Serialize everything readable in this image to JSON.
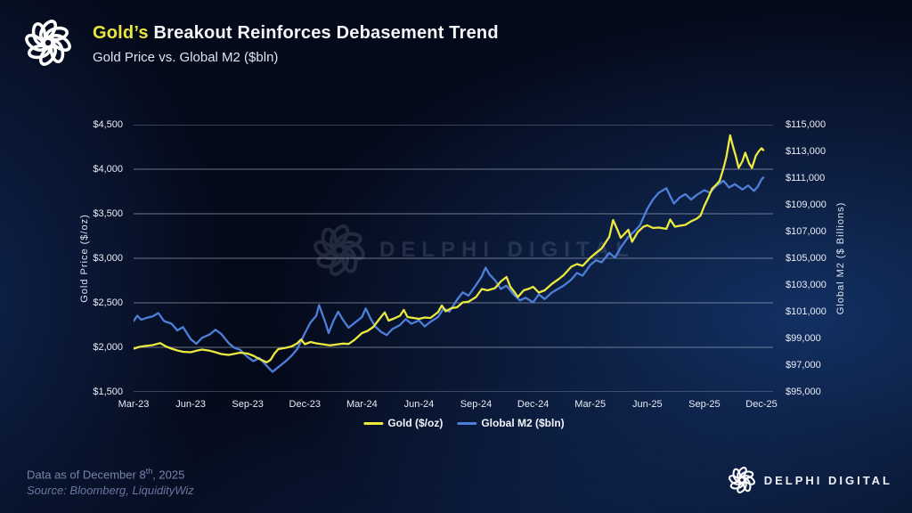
{
  "header": {
    "title_highlight": "Gold’s",
    "title_rest": " Breakout Reinforces Debasement Trend",
    "subtitle": "Gold Price vs. Global M2 ($bln)"
  },
  "footer": {
    "data_as_of_prefix": "Data as of December 8",
    "data_as_of_sup": "th",
    "data_as_of_suffix": ", 2025",
    "source": "Source: Bloomberg, LiquidityWiz"
  },
  "branding": {
    "wordmark": "DELPHI DIGITAL",
    "watermark_text": "DELPHI DIGITAL",
    "logo_icon": "delphi-knot-icon"
  },
  "colors": {
    "gold_line": "#ece93f",
    "m2_line": "#4d7fd9",
    "title_highlight": "#e9e73d",
    "background": "#050a1b"
  },
  "chart_data": {
    "type": "line",
    "title": "Gold Price vs. Global M2 ($bln)",
    "grid": true,
    "legend_position": "bottom-center",
    "x_axis": {
      "tick_labels": [
        "Mar-23",
        "Jun-23",
        "Sep-23",
        "Dec-23",
        "Mar-24",
        "Jun-24",
        "Sep-24",
        "Dec-24",
        "Mar-25",
        "Jun-25",
        "Sep-25",
        "Dec-25"
      ],
      "t_min": 0,
      "t_max": 33,
      "unit": "months since Mar-2023"
    },
    "y_axis_left": {
      "label": "Gold Price ($/oz)",
      "ticks": [
        "$4,500",
        "$4,000",
        "$3,500",
        "$3,000",
        "$2,500",
        "$2,000",
        "$1,500"
      ],
      "min": 1500,
      "max": 4500
    },
    "y_axis_right": {
      "label": "Global M2 ($ Billions)",
      "ticks": [
        "$115,000",
        "$113,000",
        "$111,000",
        "$109,000",
        "$107,000",
        "$105,000",
        "$103,000",
        "$101,000",
        "$99,000",
        "$97,000",
        "$95,000"
      ],
      "min": 95000,
      "max": 115000
    },
    "legend": [
      {
        "label": "Gold ($/oz)",
        "color": "#ece93f"
      },
      {
        "label": "Global M2 ($bln)",
        "color": "#4d7fd9"
      }
    ],
    "series": [
      {
        "name": "Global M2 ($bln)",
        "axis": "right",
        "color": "#4d7fd9",
        "points": [
          [
            0,
            100300
          ],
          [
            0.2,
            100700
          ],
          [
            0.4,
            100400
          ],
          [
            0.7,
            100550
          ],
          [
            1,
            100650
          ],
          [
            1.3,
            100900
          ],
          [
            1.6,
            100300
          ],
          [
            2,
            100100
          ],
          [
            2.3,
            99600
          ],
          [
            2.6,
            99850
          ],
          [
            3,
            98950
          ],
          [
            3.3,
            98600
          ],
          [
            3.6,
            99050
          ],
          [
            4,
            99300
          ],
          [
            4.3,
            99650
          ],
          [
            4.6,
            99350
          ],
          [
            5,
            98650
          ],
          [
            5.3,
            98300
          ],
          [
            5.6,
            98150
          ],
          [
            6,
            97600
          ],
          [
            6.3,
            97300
          ],
          [
            6.6,
            97550
          ],
          [
            7,
            96950
          ],
          [
            7.3,
            96500
          ],
          [
            7.6,
            96850
          ],
          [
            8,
            97300
          ],
          [
            8.3,
            97700
          ],
          [
            8.6,
            98200
          ],
          [
            9,
            99400
          ],
          [
            9.3,
            100200
          ],
          [
            9.6,
            100700
          ],
          [
            9.75,
            101500
          ],
          [
            9.9,
            100900
          ],
          [
            10.1,
            100100
          ],
          [
            10.25,
            99400
          ],
          [
            10.5,
            100300
          ],
          [
            10.75,
            101000
          ],
          [
            11,
            100400
          ],
          [
            11.3,
            99800
          ],
          [
            11.6,
            100150
          ],
          [
            12,
            100600
          ],
          [
            12.2,
            101250
          ],
          [
            12.45,
            100500
          ],
          [
            12.7,
            99900
          ],
          [
            13,
            99500
          ],
          [
            13.3,
            99250
          ],
          [
            13.6,
            99700
          ],
          [
            14,
            100000
          ],
          [
            14.3,
            100450
          ],
          [
            14.6,
            100100
          ],
          [
            15,
            100350
          ],
          [
            15.3,
            99900
          ],
          [
            15.6,
            100250
          ],
          [
            16,
            100600
          ],
          [
            16.3,
            101250
          ],
          [
            16.6,
            101000
          ],
          [
            17,
            101900
          ],
          [
            17.3,
            102450
          ],
          [
            17.6,
            102200
          ],
          [
            18,
            103000
          ],
          [
            18.3,
            103650
          ],
          [
            18.5,
            104300
          ],
          [
            18.7,
            103800
          ],
          [
            19,
            103350
          ],
          [
            19.3,
            102700
          ],
          [
            19.6,
            102950
          ],
          [
            20,
            102250
          ],
          [
            20.3,
            101850
          ],
          [
            20.6,
            102050
          ],
          [
            21,
            101700
          ],
          [
            21.3,
            102300
          ],
          [
            21.6,
            101950
          ],
          [
            22,
            102450
          ],
          [
            22.3,
            102700
          ],
          [
            22.6,
            102950
          ],
          [
            23,
            103400
          ],
          [
            23.3,
            103900
          ],
          [
            23.6,
            103700
          ],
          [
            24,
            104500
          ],
          [
            24.3,
            104850
          ],
          [
            24.6,
            104700
          ],
          [
            25,
            105400
          ],
          [
            25.3,
            105050
          ],
          [
            25.6,
            105800
          ],
          [
            26,
            106600
          ],
          [
            26.3,
            107000
          ],
          [
            26.6,
            107450
          ],
          [
            27,
            108700
          ],
          [
            27.3,
            109400
          ],
          [
            27.6,
            109900
          ],
          [
            28,
            110250
          ],
          [
            28.2,
            109650
          ],
          [
            28.4,
            109100
          ],
          [
            28.7,
            109550
          ],
          [
            29,
            109800
          ],
          [
            29.3,
            109400
          ],
          [
            29.6,
            109750
          ],
          [
            30,
            110100
          ],
          [
            30.3,
            109900
          ],
          [
            30.6,
            110400
          ],
          [
            31,
            110800
          ],
          [
            31.3,
            110300
          ],
          [
            31.6,
            110550
          ],
          [
            32,
            110150
          ],
          [
            32.3,
            110450
          ],
          [
            32.6,
            110050
          ],
          [
            32.8,
            110350
          ],
          [
            33,
            110900
          ],
          [
            33.1,
            111050
          ]
        ]
      },
      {
        "name": "Gold ($/oz)",
        "axis": "left",
        "color": "#ece93f",
        "points": [
          [
            0,
            1985
          ],
          [
            0.3,
            2005
          ],
          [
            0.6,
            2015
          ],
          [
            1,
            2025
          ],
          [
            1.4,
            2048
          ],
          [
            1.7,
            2010
          ],
          [
            2,
            1985
          ],
          [
            2.3,
            1965
          ],
          [
            2.6,
            1950
          ],
          [
            3,
            1945
          ],
          [
            3.3,
            1962
          ],
          [
            3.6,
            1975
          ],
          [
            4,
            1962
          ],
          [
            4.3,
            1945
          ],
          [
            4.6,
            1925
          ],
          [
            5,
            1915
          ],
          [
            5.3,
            1928
          ],
          [
            5.6,
            1940
          ],
          [
            6,
            1930
          ],
          [
            6.3,
            1905
          ],
          [
            6.6,
            1870
          ],
          [
            7,
            1832
          ],
          [
            7.2,
            1860
          ],
          [
            7.4,
            1930
          ],
          [
            7.6,
            1980
          ],
          [
            8,
            1995
          ],
          [
            8.3,
            2010
          ],
          [
            8.6,
            2045
          ],
          [
            8.8,
            2088
          ],
          [
            9,
            2035
          ],
          [
            9.3,
            2060
          ],
          [
            9.6,
            2045
          ],
          [
            10,
            2032
          ],
          [
            10.3,
            2022
          ],
          [
            10.6,
            2030
          ],
          [
            11,
            2042
          ],
          [
            11.3,
            2038
          ],
          [
            11.6,
            2082
          ],
          [
            12,
            2160
          ],
          [
            12.3,
            2185
          ],
          [
            12.6,
            2230
          ],
          [
            13,
            2340
          ],
          [
            13.2,
            2392
          ],
          [
            13.4,
            2300
          ],
          [
            13.7,
            2325
          ],
          [
            14,
            2355
          ],
          [
            14.2,
            2420
          ],
          [
            14.4,
            2340
          ],
          [
            14.7,
            2330
          ],
          [
            15,
            2320
          ],
          [
            15.3,
            2335
          ],
          [
            15.6,
            2330
          ],
          [
            16,
            2395
          ],
          [
            16.2,
            2470
          ],
          [
            16.4,
            2405
          ],
          [
            16.7,
            2440
          ],
          [
            17,
            2450
          ],
          [
            17.3,
            2505
          ],
          [
            17.6,
            2512
          ],
          [
            18,
            2565
          ],
          [
            18.3,
            2655
          ],
          [
            18.6,
            2640
          ],
          [
            19,
            2665
          ],
          [
            19.3,
            2740
          ],
          [
            19.6,
            2790
          ],
          [
            19.8,
            2680
          ],
          [
            20,
            2625
          ],
          [
            20.2,
            2565
          ],
          [
            20.5,
            2640
          ],
          [
            20.8,
            2660
          ],
          [
            21,
            2680
          ],
          [
            21.3,
            2615
          ],
          [
            21.6,
            2640
          ],
          [
            22,
            2715
          ],
          [
            22.3,
            2760
          ],
          [
            22.6,
            2810
          ],
          [
            23,
            2905
          ],
          [
            23.3,
            2935
          ],
          [
            23.6,
            2915
          ],
          [
            24,
            3005
          ],
          [
            24.3,
            3060
          ],
          [
            24.6,
            3110
          ],
          [
            25,
            3240
          ],
          [
            25.2,
            3430
          ],
          [
            25.45,
            3310
          ],
          [
            25.6,
            3230
          ],
          [
            26,
            3320
          ],
          [
            26.2,
            3185
          ],
          [
            26.5,
            3295
          ],
          [
            26.8,
            3355
          ],
          [
            27,
            3370
          ],
          [
            27.3,
            3340
          ],
          [
            27.6,
            3345
          ],
          [
            28,
            3330
          ],
          [
            28.2,
            3435
          ],
          [
            28.45,
            3355
          ],
          [
            28.7,
            3365
          ],
          [
            29,
            3375
          ],
          [
            29.3,
            3415
          ],
          [
            29.6,
            3445
          ],
          [
            29.8,
            3480
          ],
          [
            30,
            3590
          ],
          [
            30.2,
            3680
          ],
          [
            30.4,
            3780
          ],
          [
            30.6,
            3820
          ],
          [
            30.8,
            3870
          ],
          [
            31,
            4010
          ],
          [
            31.15,
            4135
          ],
          [
            31.35,
            4380
          ],
          [
            31.5,
            4255
          ],
          [
            31.65,
            4145
          ],
          [
            31.8,
            4015
          ],
          [
            32,
            4090
          ],
          [
            32.15,
            4185
          ],
          [
            32.35,
            4065
          ],
          [
            32.5,
            4015
          ],
          [
            32.7,
            4150
          ],
          [
            32.85,
            4200
          ],
          [
            33,
            4235
          ],
          [
            33.1,
            4215
          ]
        ]
      }
    ]
  }
}
